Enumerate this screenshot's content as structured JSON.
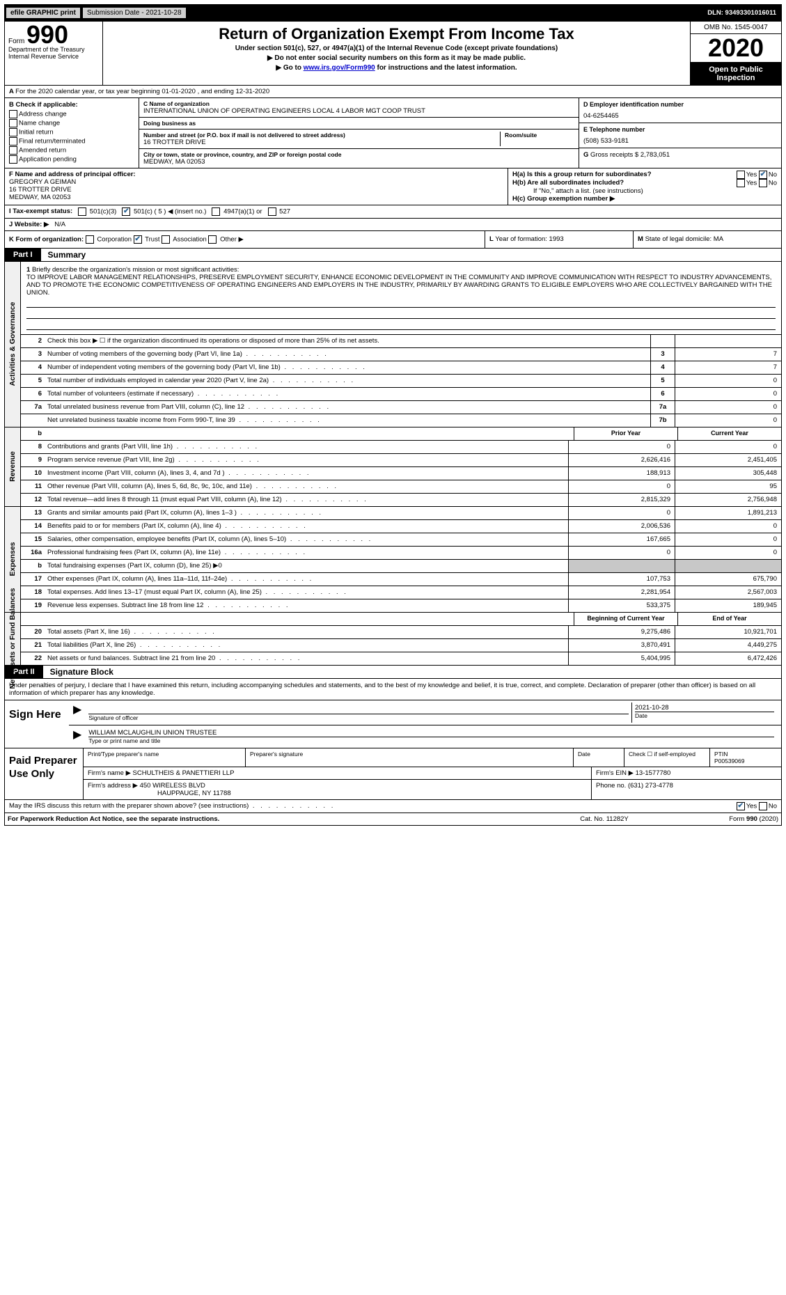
{
  "topbar": {
    "efile": "efile GRAPHIC print",
    "submission": "Submission Date - 2021-10-28",
    "dln": "DLN: 93493301016011"
  },
  "header": {
    "form_label": "Form",
    "form_num": "990",
    "dept": "Department of the Treasury Internal Revenue Service",
    "title": "Return of Organization Exempt From Income Tax",
    "sub1": "Under section 501(c), 527, or 4947(a)(1) of the Internal Revenue Code (except private foundations)",
    "sub2": "▶ Do not enter social security numbers on this form as it may be made public.",
    "sub3_pre": "▶ Go to ",
    "sub3_link": "www.irs.gov/Form990",
    "sub3_post": " for instructions and the latest information.",
    "omb": "OMB No. 1545-0047",
    "year": "2020",
    "open": "Open to Public Inspection"
  },
  "rowA": "For the 2020 calendar year, or tax year beginning 01-01-2020   , and ending 12-31-2020",
  "B": {
    "hdr": "B Check if applicable:",
    "opts": [
      "Address change",
      "Name change",
      "Initial return",
      "Final return/terminated",
      "Amended return",
      "Application pending"
    ]
  },
  "C": {
    "name_lbl": "C Name of organization",
    "name": "INTERNATIONAL UNION OF OPERATING ENGINEERS LOCAL 4 LABOR MGT COOP TRUST",
    "dba_lbl": "Doing business as",
    "dba": "",
    "street_lbl": "Number and street (or P.O. box if mail is not delivered to street address)",
    "room_lbl": "Room/suite",
    "street": "16 TROTTER DRIVE",
    "city_lbl": "City or town, state or province, country, and ZIP or foreign postal code",
    "city": "MEDWAY, MA  02053"
  },
  "D": {
    "lbl": "D Employer identification number",
    "val": "04-6254465"
  },
  "E": {
    "lbl": "E Telephone number",
    "val": "(508) 533-9181"
  },
  "G": {
    "lbl": "G",
    "txt": "Gross receipts $",
    "val": "2,783,051"
  },
  "F": {
    "lbl": "F Name and address of principal officer:",
    "name": "GREGORY A GEIMAN",
    "addr1": "16 TROTTER DRIVE",
    "addr2": "MEDWAY, MA  02053"
  },
  "H": {
    "a": "H(a)  Is this a group return for subordinates?",
    "b": "H(b)  Are all subordinates included?",
    "note": "If \"No,\" attach a list. (see instructions)",
    "c": "H(c)  Group exemption number ▶",
    "yes": "Yes",
    "no": "No"
  },
  "I": {
    "lbl": "I   Tax-exempt status:",
    "o1": "501(c)(3)",
    "o2": "501(c) ( 5 ) ◀ (insert no.)",
    "o3": "4947(a)(1) or",
    "o4": "527"
  },
  "J": {
    "lbl": "J   Website: ▶",
    "val": "N/A"
  },
  "K": {
    "lbl": "K Form of organization:",
    "o1": "Corporation",
    "o2": "Trust",
    "o3": "Association",
    "o4": "Other ▶"
  },
  "L": {
    "lbl": "L",
    "txt": "Year of formation: 1993"
  },
  "M": {
    "lbl": "M",
    "txt": "State of legal domicile: MA"
  },
  "part1": {
    "tag": "Part I",
    "txt": "Summary"
  },
  "mission": {
    "num": "1",
    "lbl": "Briefly describe the organization's mission or most significant activities:",
    "txt": "TO IMPROVE LABOR MANAGEMENT RELATIONSHIPS, PRESERVE EMPLOYMENT SECURITY, ENHANCE ECONOMIC DEVELOPMENT IN THE COMMUNITY AND IMPROVE COMMUNICATION WITH RESPECT TO INDUSTRY ADVANCEMENTS, AND TO PROMOTE THE ECONOMIC COMPETITIVENESS OF OPERATING ENGINEERS AND EMPLOYERS IN THE INDUSTRY, PRIMARILY BY AWARDING GRANTS TO ELIGIBLE EMPLOYERS WHO ARE COLLECTIVELY BARGAINED WITH THE UNION."
  },
  "gov_rows": [
    {
      "n": "2",
      "d": "Check this box ▶ ☐  if the organization discontinued its operations or disposed of more than 25% of its net assets.",
      "box": "",
      "v": ""
    },
    {
      "n": "3",
      "d": "Number of voting members of the governing body (Part VI, line 1a)",
      "box": "3",
      "v": "7"
    },
    {
      "n": "4",
      "d": "Number of independent voting members of the governing body (Part VI, line 1b)",
      "box": "4",
      "v": "7"
    },
    {
      "n": "5",
      "d": "Total number of individuals employed in calendar year 2020 (Part V, line 2a)",
      "box": "5",
      "v": "0"
    },
    {
      "n": "6",
      "d": "Total number of volunteers (estimate if necessary)",
      "box": "6",
      "v": "0"
    },
    {
      "n": "7a",
      "d": "Total unrelated business revenue from Part VIII, column (C), line 12",
      "box": "7a",
      "v": "0"
    },
    {
      "n": "",
      "d": "Net unrelated business taxable income from Form 990-T, line 39",
      "box": "7b",
      "v": "0"
    }
  ],
  "rev_hdr": {
    "b": "b",
    "py": "Prior Year",
    "cy": "Current Year"
  },
  "rev_rows": [
    {
      "n": "8",
      "d": "Contributions and grants (Part VIII, line 1h)",
      "py": "0",
      "cy": "0"
    },
    {
      "n": "9",
      "d": "Program service revenue (Part VIII, line 2g)",
      "py": "2,626,416",
      "cy": "2,451,405"
    },
    {
      "n": "10",
      "d": "Investment income (Part VIII, column (A), lines 3, 4, and 7d )",
      "py": "188,913",
      "cy": "305,448"
    },
    {
      "n": "11",
      "d": "Other revenue (Part VIII, column (A), lines 5, 6d, 8c, 9c, 10c, and 11e)",
      "py": "0",
      "cy": "95"
    },
    {
      "n": "12",
      "d": "Total revenue—add lines 8 through 11 (must equal Part VIII, column (A), line 12)",
      "py": "2,815,329",
      "cy": "2,756,948"
    }
  ],
  "exp_rows": [
    {
      "n": "13",
      "d": "Grants and similar amounts paid (Part IX, column (A), lines 1–3 )",
      "py": "0",
      "cy": "1,891,213"
    },
    {
      "n": "14",
      "d": "Benefits paid to or for members (Part IX, column (A), line 4)",
      "py": "2,006,536",
      "cy": "0"
    },
    {
      "n": "15",
      "d": "Salaries, other compensation, employee benefits (Part IX, column (A), lines 5–10)",
      "py": "167,665",
      "cy": "0"
    },
    {
      "n": "16a",
      "d": "Professional fundraising fees (Part IX, column (A), line 11e)",
      "py": "0",
      "cy": "0"
    },
    {
      "n": "b",
      "d": "Total fundraising expenses (Part IX, column (D), line 25) ▶0",
      "py": "",
      "cy": "",
      "grey": true
    },
    {
      "n": "17",
      "d": "Other expenses (Part IX, column (A), lines 11a–11d, 11f–24e)",
      "py": "107,753",
      "cy": "675,790"
    },
    {
      "n": "18",
      "d": "Total expenses. Add lines 13–17 (must equal Part IX, column (A), line 25)",
      "py": "2,281,954",
      "cy": "2,567,003"
    },
    {
      "n": "19",
      "d": "Revenue less expenses. Subtract line 18 from line 12",
      "py": "533,375",
      "cy": "189,945"
    }
  ],
  "na_hdr": {
    "py": "Beginning of Current Year",
    "cy": "End of Year"
  },
  "na_rows": [
    {
      "n": "20",
      "d": "Total assets (Part X, line 16)",
      "py": "9,275,486",
      "cy": "10,921,701"
    },
    {
      "n": "21",
      "d": "Total liabilities (Part X, line 26)",
      "py": "3,870,491",
      "cy": "4,449,275"
    },
    {
      "n": "22",
      "d": "Net assets or fund balances. Subtract line 21 from line 20",
      "py": "5,404,995",
      "cy": "6,472,426"
    }
  ],
  "vtabs": {
    "gov": "Activities & Governance",
    "rev": "Revenue",
    "exp": "Expenses",
    "na": "Net Assets or Fund Balances"
  },
  "part2": {
    "tag": "Part II",
    "txt": "Signature Block"
  },
  "penalty": "Under penalties of perjury, I declare that I have examined this return, including accompanying schedules and statements, and to the best of my knowledge and belief, it is true, correct, and complete. Declaration of preparer (other than officer) is based on all information of which preparer has any knowledge.",
  "sign": {
    "here": "Sign Here",
    "sig_lbl": "Signature of officer",
    "date_lbl": "Date",
    "date": "2021-10-28",
    "name": "WILLIAM MCLAUGHLIN  UNION TRUSTEE",
    "name_lbl": "Type or print name and title"
  },
  "prep": {
    "lab": "Paid Preparer Use Only",
    "h": {
      "c1": "Print/Type preparer's name",
      "c2": "Preparer's signature",
      "c3": "Date",
      "c4": "Check ☐  if self-employed",
      "c5": "PTIN"
    },
    "ptin": "P00539069",
    "firm_lbl": "Firm's name      ▶",
    "firm": "SCHULTHEIS & PANETTIERI LLP",
    "ein_lbl": "Firm's EIN ▶",
    "ein": "13-1577780",
    "addr_lbl": "Firm's address ▶",
    "addr1": "450 WIRELESS BLVD",
    "addr2": "HAUPPAUGE, NY  11788",
    "phone_lbl": "Phone no.",
    "phone": "(631) 273-4778"
  },
  "discuss": {
    "q": "May the IRS discuss this return with the preparer shown above? (see instructions)",
    "yes": "Yes",
    "no": "No"
  },
  "footer": {
    "l": "For Paperwork Reduction Act Notice, see the separate instructions.",
    "c": "Cat. No. 11282Y",
    "r": "Form 990 (2020)"
  }
}
